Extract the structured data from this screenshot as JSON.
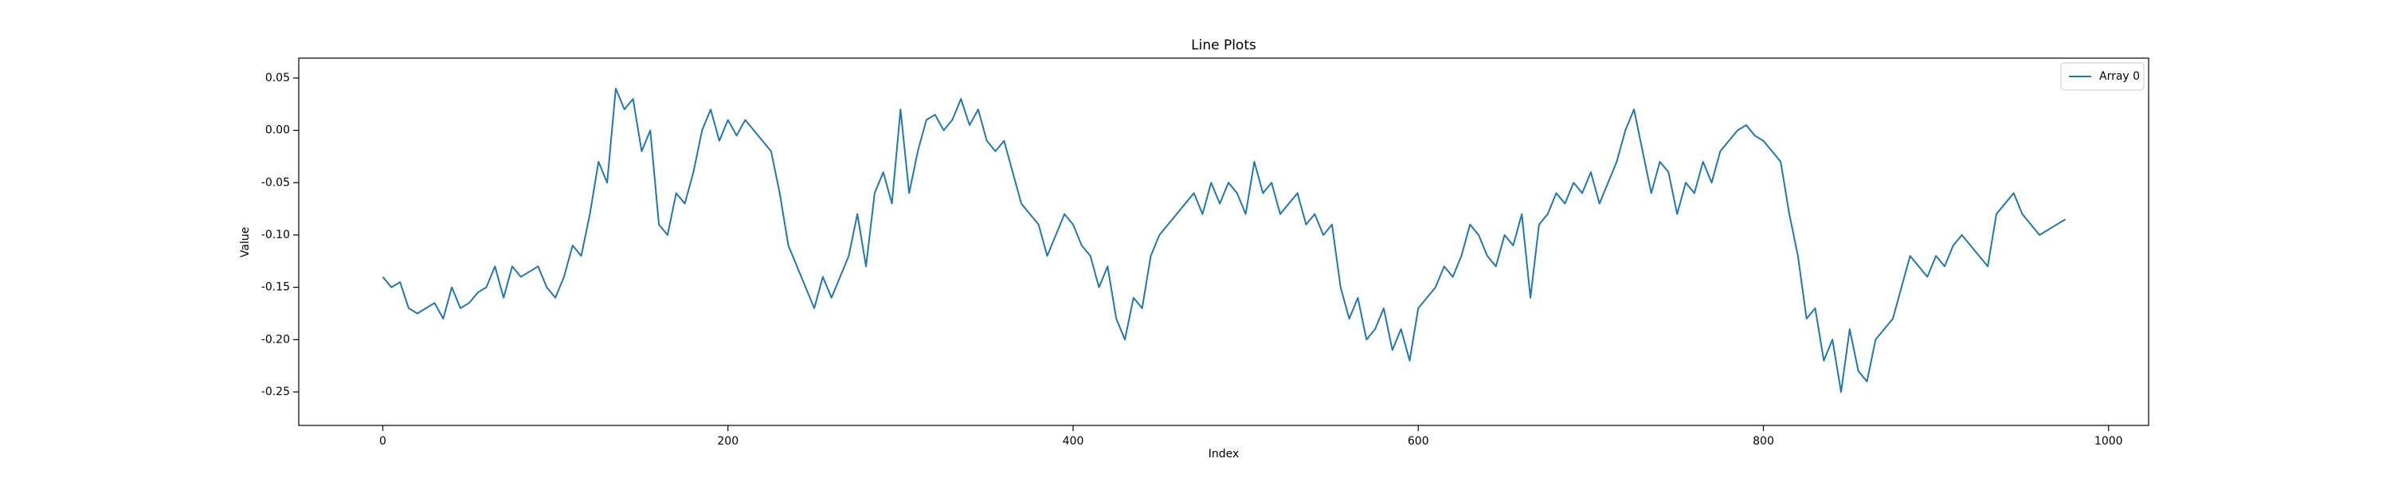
{
  "chart_data": {
    "type": "line",
    "title": "Line Plots",
    "x_label": "Index",
    "y_label": "Value",
    "xlim": [
      -48.7,
      1023.2
    ],
    "ylim": [
      -0.282,
      0.069
    ],
    "xticks": [
      0,
      200,
      400,
      600,
      800,
      1000
    ],
    "yticks": [
      -0.25,
      {
        "value": -0.2,
        "label": "-0.20"
      },
      -0.15,
      {
        "value": -0.1,
        "label": "-0.10"
      },
      -0.05,
      {
        "value": 0,
        "label": "0.00"
      },
      0.05
    ],
    "legend": "upper right",
    "grid": false,
    "x": [
      0,
      5,
      10,
      15,
      20,
      25,
      30,
      35,
      40,
      45,
      50,
      55,
      60,
      65,
      70,
      75,
      80,
      85,
      90,
      95,
      100,
      105,
      110,
      115,
      120,
      125,
      130,
      135,
      140,
      145,
      150,
      155,
      160,
      165,
      170,
      175,
      180,
      185,
      190,
      195,
      200,
      205,
      210,
      215,
      220,
      225,
      230,
      235,
      240,
      245,
      250,
      255,
      260,
      265,
      270,
      275,
      280,
      285,
      290,
      295,
      300,
      305,
      310,
      315,
      320,
      325,
      330,
      335,
      340,
      345,
      350,
      355,
      360,
      365,
      370,
      375,
      380,
      385,
      390,
      395,
      400,
      405,
      410,
      415,
      420,
      425,
      430,
      435,
      440,
      445,
      450,
      455,
      460,
      465,
      470,
      475,
      480,
      485,
      490,
      495,
      500,
      505,
      510,
      515,
      520,
      525,
      530,
      535,
      540,
      545,
      550,
      555,
      560,
      565,
      570,
      575,
      580,
      585,
      590,
      595,
      600,
      605,
      610,
      615,
      620,
      625,
      630,
      635,
      640,
      645,
      650,
      655,
      660,
      665,
      670,
      675,
      680,
      685,
      690,
      695,
      700,
      705,
      710,
      715,
      720,
      725,
      730,
      735,
      740,
      745,
      750,
      755,
      760,
      765,
      770,
      775,
      780,
      785,
      790,
      795,
      800,
      805,
      810,
      815,
      820,
      825,
      830,
      835,
      840,
      845,
      850,
      855,
      860,
      865,
      870,
      875,
      880,
      885,
      890,
      895,
      900,
      905,
      910,
      915,
      920,
      925,
      930,
      935,
      940,
      945,
      950,
      955,
      960,
      965,
      970,
      975
    ],
    "series": [
      {
        "name": "Array 0",
        "color": "#1f77b4",
        "values": [
          -0.14,
          -0.15,
          -0.145,
          -0.17,
          -0.175,
          -0.17,
          -0.165,
          -0.18,
          -0.15,
          -0.17,
          -0.165,
          -0.155,
          -0.15,
          -0.13,
          -0.16,
          -0.13,
          -0.14,
          -0.135,
          -0.13,
          -0.15,
          -0.16,
          -0.14,
          -0.11,
          -0.12,
          -0.08,
          -0.03,
          -0.05,
          0.04,
          0.02,
          0.03,
          -0.02,
          0.0,
          -0.09,
          -0.1,
          -0.06,
          -0.07,
          -0.04,
          0.0,
          0.02,
          -0.01,
          0.01,
          -0.005,
          0.01,
          0.0,
          -0.01,
          -0.02,
          -0.06,
          -0.11,
          -0.13,
          -0.15,
          -0.17,
          -0.14,
          -0.16,
          -0.14,
          -0.12,
          -0.08,
          -0.13,
          -0.06,
          -0.04,
          -0.07,
          0.02,
          -0.06,
          -0.02,
          0.01,
          0.015,
          0.0,
          0.01,
          0.03,
          0.005,
          0.02,
          -0.01,
          -0.02,
          -0.01,
          -0.04,
          -0.07,
          -0.08,
          -0.09,
          -0.12,
          -0.1,
          -0.08,
          -0.09,
          -0.11,
          -0.12,
          -0.15,
          -0.13,
          -0.18,
          -0.2,
          -0.16,
          -0.17,
          -0.12,
          -0.1,
          -0.09,
          -0.08,
          -0.07,
          -0.06,
          -0.08,
          -0.05,
          -0.07,
          -0.05,
          -0.06,
          -0.08,
          -0.03,
          -0.06,
          -0.05,
          -0.08,
          -0.07,
          -0.06,
          -0.09,
          -0.08,
          -0.1,
          -0.09,
          -0.15,
          -0.18,
          -0.16,
          -0.2,
          -0.19,
          -0.17,
          -0.21,
          -0.19,
          -0.22,
          -0.17,
          -0.16,
          -0.15,
          -0.13,
          -0.14,
          -0.12,
          -0.09,
          -0.1,
          -0.12,
          -0.13,
          -0.1,
          -0.11,
          -0.08,
          -0.16,
          -0.09,
          -0.08,
          -0.06,
          -0.07,
          -0.05,
          -0.06,
          -0.04,
          -0.07,
          -0.05,
          -0.03,
          0.0,
          0.02,
          -0.02,
          -0.06,
          -0.03,
          -0.04,
          -0.08,
          -0.05,
          -0.06,
          -0.03,
          -0.05,
          -0.02,
          -0.01,
          0.0,
          0.005,
          -0.005,
          -0.01,
          -0.02,
          -0.03,
          -0.08,
          -0.12,
          -0.18,
          -0.17,
          -0.22,
          -0.2,
          -0.25,
          -0.19,
          -0.23,
          -0.24,
          -0.2,
          -0.19,
          -0.18,
          -0.15,
          -0.12,
          -0.13,
          -0.14,
          -0.12,
          -0.13,
          -0.11,
          -0.1,
          -0.11,
          -0.12,
          -0.13,
          -0.08,
          -0.07,
          -0.06,
          -0.08,
          -0.09,
          -0.1,
          -0.095,
          -0.09,
          -0.085
        ]
      }
    ]
  }
}
